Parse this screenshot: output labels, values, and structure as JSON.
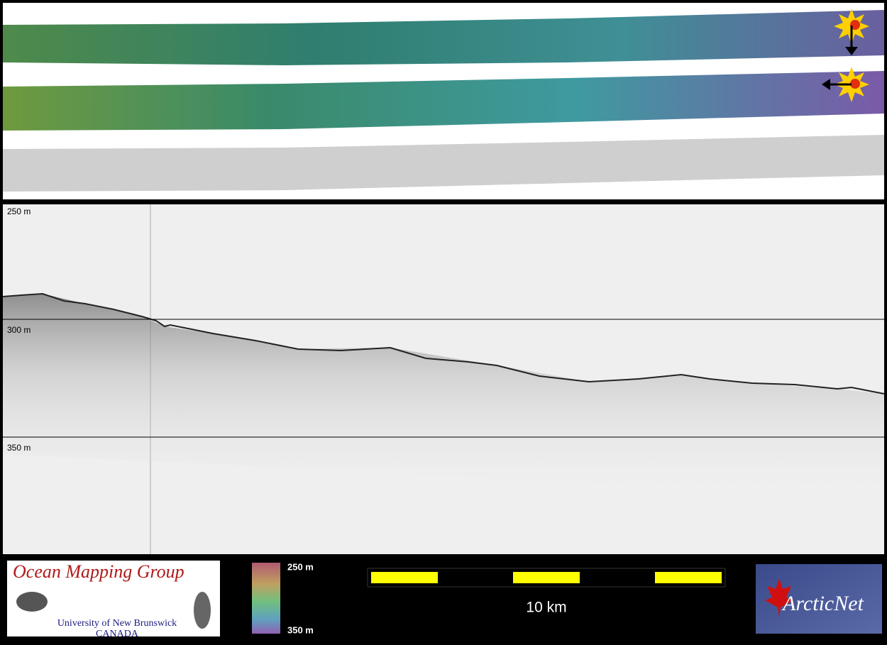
{
  "profile": {
    "depth_labels": [
      "250 m",
      "300 m",
      "350 m"
    ]
  },
  "footer": {
    "logo": {
      "title": "Ocean Mapping Group",
      "university": "University of New Brunswick",
      "country": "CANADA"
    },
    "colorbar": {
      "top_label": "250 m",
      "bottom_label": "350 m"
    },
    "scale_bar": {
      "label": "10 km"
    },
    "partner_logo": {
      "label": "ArcticNet"
    }
  }
}
